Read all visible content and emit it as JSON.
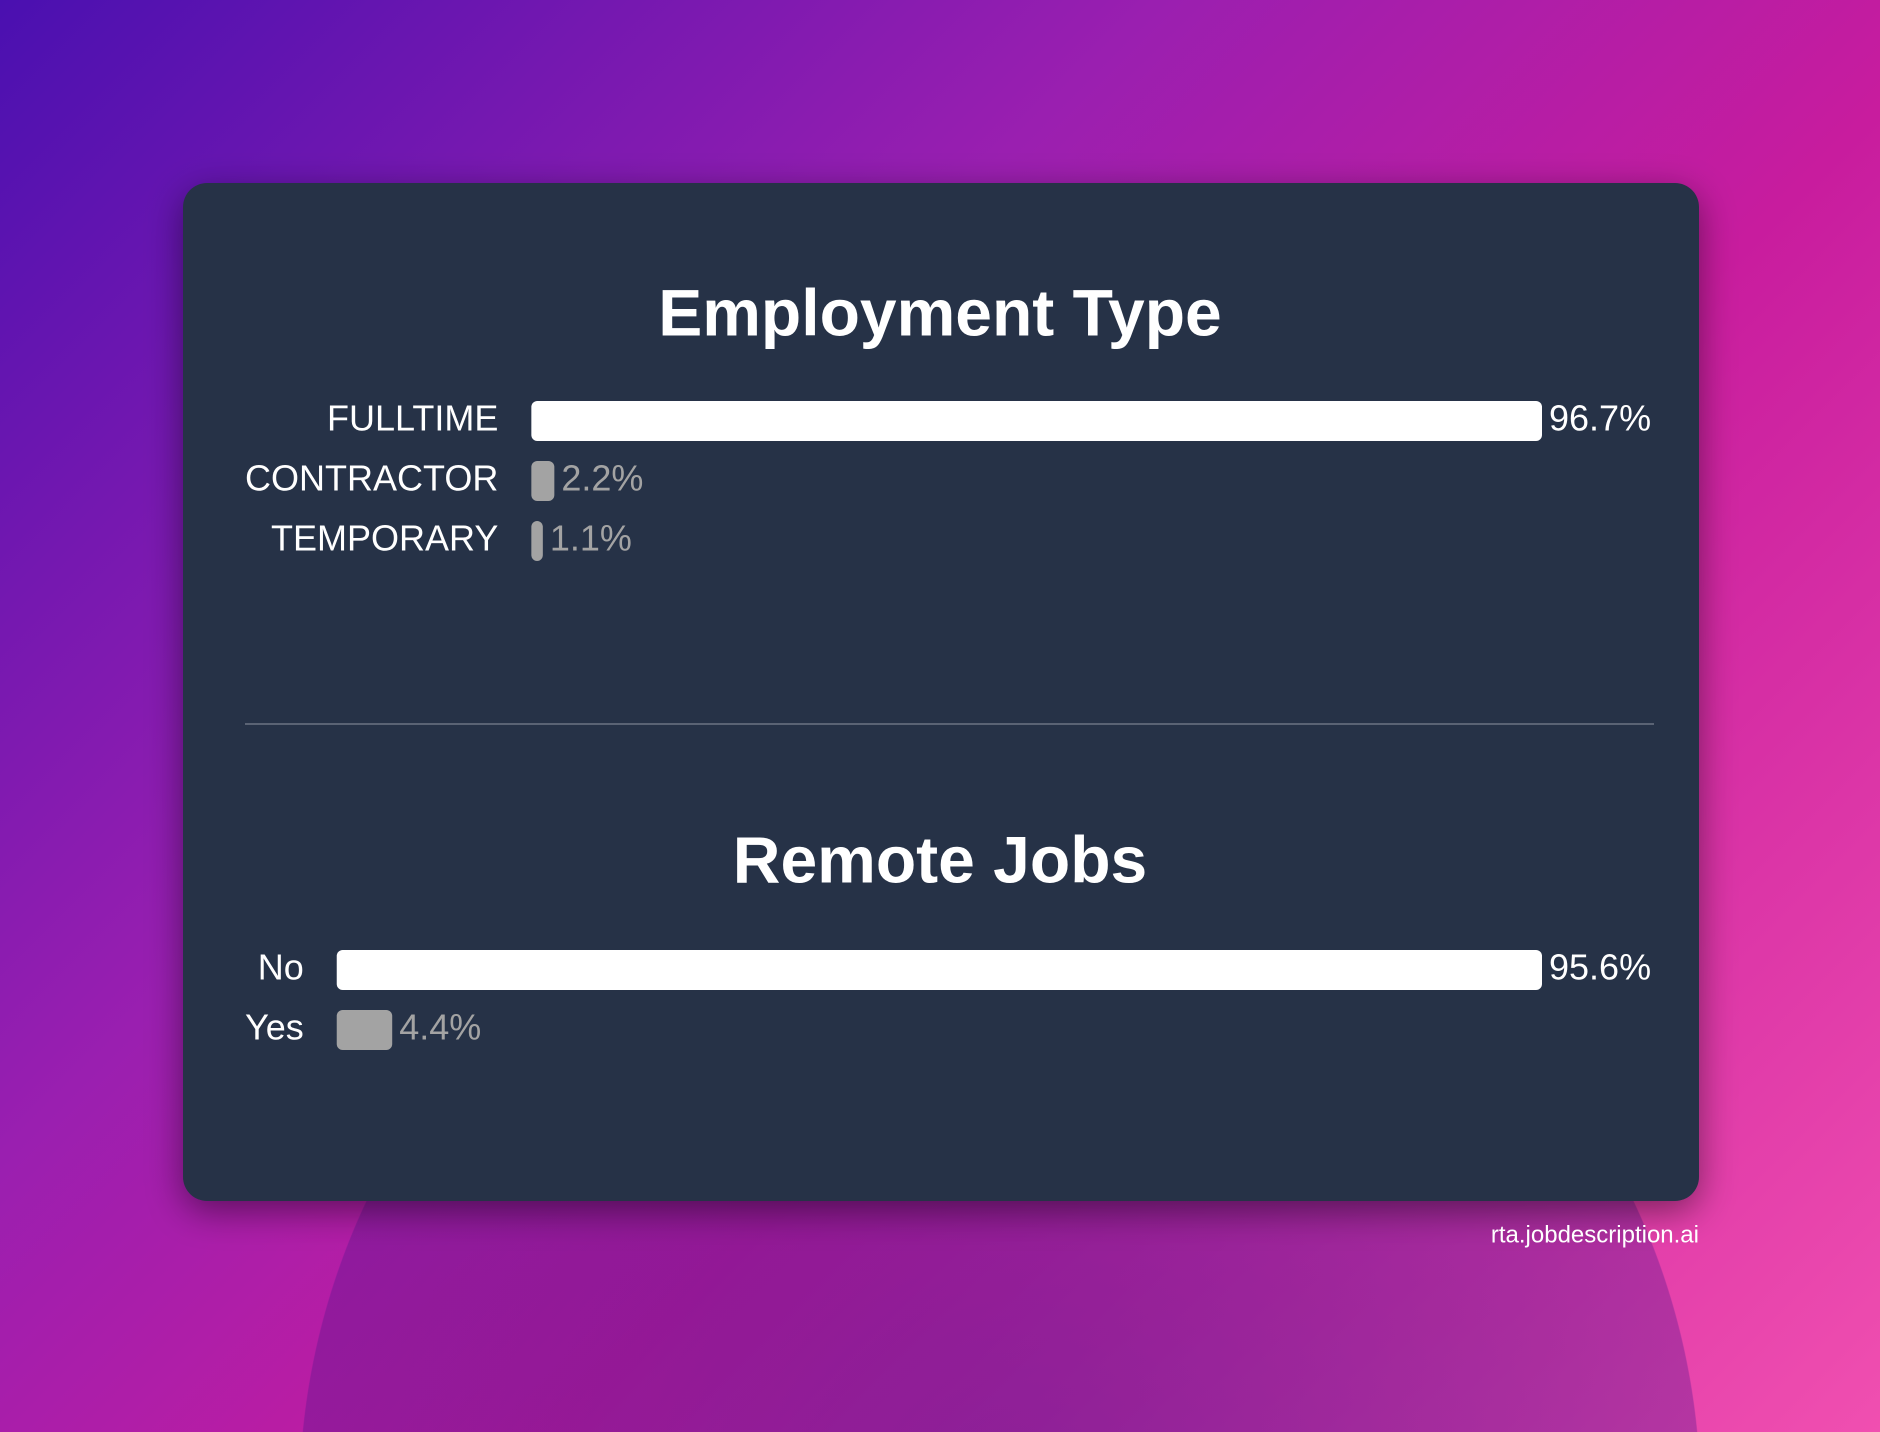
{
  "chart_data": [
    {
      "type": "bar",
      "orientation": "horizontal",
      "title": "Employment Type",
      "categories": [
        "FULLTIME",
        "CONTRACTOR",
        "TEMPORARY"
      ],
      "values": [
        96.7,
        2.2,
        1.1
      ],
      "value_labels": [
        "96.7%",
        "2.2%",
        "1.1%"
      ],
      "colors": [
        "#ffffff",
        "#a3a3a3",
        "#a3a3a3"
      ]
    },
    {
      "type": "bar",
      "orientation": "horizontal",
      "title": "Remote Jobs",
      "categories": [
        "No",
        "Yes"
      ],
      "values": [
        95.6,
        4.4
      ],
      "value_labels": [
        "95.6%",
        "4.4%"
      ],
      "colors": [
        "#ffffff",
        "#a3a3a3"
      ]
    }
  ],
  "footer": "rta.jobdescription.ai"
}
